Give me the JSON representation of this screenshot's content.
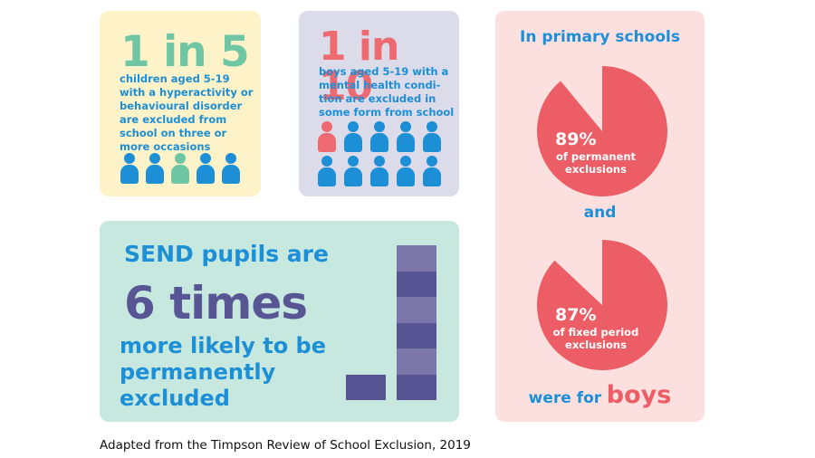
{
  "card_yellow": {
    "stat": "1 in 5",
    "text": "children aged 5-19 with a hyperactivity or behavioural disorder are excluded from school on three or more occasions",
    "icons": [
      "blue",
      "blue",
      "green",
      "blue",
      "blue"
    ],
    "colors": {
      "highlight": "#6fc6a4",
      "icon": "#1d8fd6"
    }
  },
  "card_lavender": {
    "stat": "1 in 10",
    "text": "boys aged 5-19 with a mental health condi- tion are excluded in some form from school",
    "icons": [
      "red",
      "blue",
      "blue",
      "blue",
      "blue",
      "blue",
      "blue",
      "blue",
      "blue",
      "blue"
    ],
    "colors": {
      "highlight": "#ec6a70",
      "icon": "#1d8fd6"
    }
  },
  "card_mint": {
    "line1": "SEND pupils are",
    "line2": "6 times",
    "line3": "more likely to be permanently excluded",
    "bar_ratio": 6,
    "colors": {
      "bar_light": "#7c77a8",
      "bar_dark": "#585594"
    }
  },
  "card_pink": {
    "title": "In primary schools",
    "pie1": {
      "value": 89,
      "percent_label": "89%",
      "label": "of permanent exclusions"
    },
    "connector": "and",
    "pie2": {
      "value": 87,
      "percent_label": "87%",
      "label": "of fixed period exclusions"
    },
    "footer_prefix": "were for",
    "footer_emphasis": "boys",
    "colors": {
      "pie": "#ec5d66"
    }
  },
  "caption": "Adapted from the Timpson Review of School Exclusion, 2019"
}
